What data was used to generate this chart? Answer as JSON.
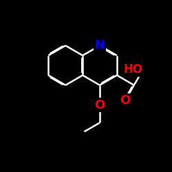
{
  "bg_color": "#000000",
  "atom_colors": {
    "N": "#0000ff",
    "O": "#ff0000"
  },
  "line_color": "#ffffff",
  "bond_width": 1.8,
  "font_size_atoms": 14
}
